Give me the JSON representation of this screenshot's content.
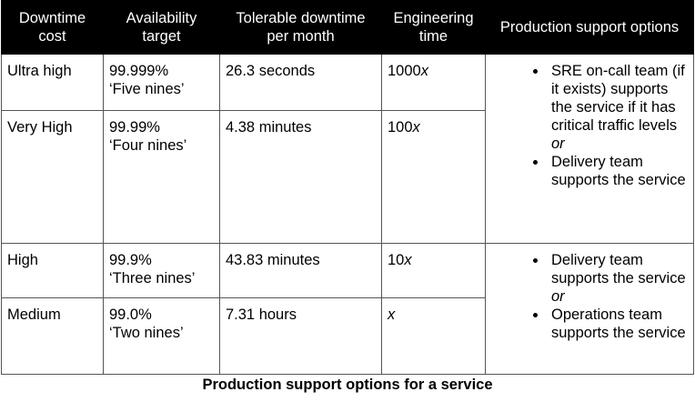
{
  "table": {
    "header": [
      "Downtime cost",
      "Availability target",
      "Tolerable downtime per month",
      "Engineering time",
      "Production support options"
    ],
    "rows": [
      {
        "cost": "Ultra high",
        "target": "99.999%",
        "nickname": "‘Five nines’",
        "downtime": "26.3 seconds",
        "time": {
          "multiplier": "1000",
          "symbol": "x"
        }
      },
      {
        "cost": "Very High",
        "target": "99.99%",
        "nickname": "‘Four nines’",
        "downtime": "4.38 minutes",
        "time": {
          "multiplier": "100",
          "symbol": "x"
        }
      },
      {
        "cost": "High",
        "target": "99.9%",
        "nickname": "‘Three nines’",
        "downtime": "43.83 minutes",
        "time": {
          "multiplier": "10",
          "symbol": "x"
        }
      },
      {
        "cost": "Medium",
        "target": "99.0%",
        "nickname": "‘Two nines’",
        "downtime": "7.31 hours",
        "time": {
          "symbol": "x"
        }
      }
    ],
    "support_groups": [
      {
        "items": [
          {
            "text": "SRE on-call team (if it exists) supports the service if it has critical traffic levels",
            "connector": "or"
          },
          {
            "text": "Delivery team supports the service"
          }
        ]
      },
      {
        "items": [
          {
            "text": "Delivery team supports the service",
            "connector": "or"
          },
          {
            "text": "Operations team supports the service"
          }
        ]
      }
    ],
    "caption": "Production support options for a service"
  }
}
